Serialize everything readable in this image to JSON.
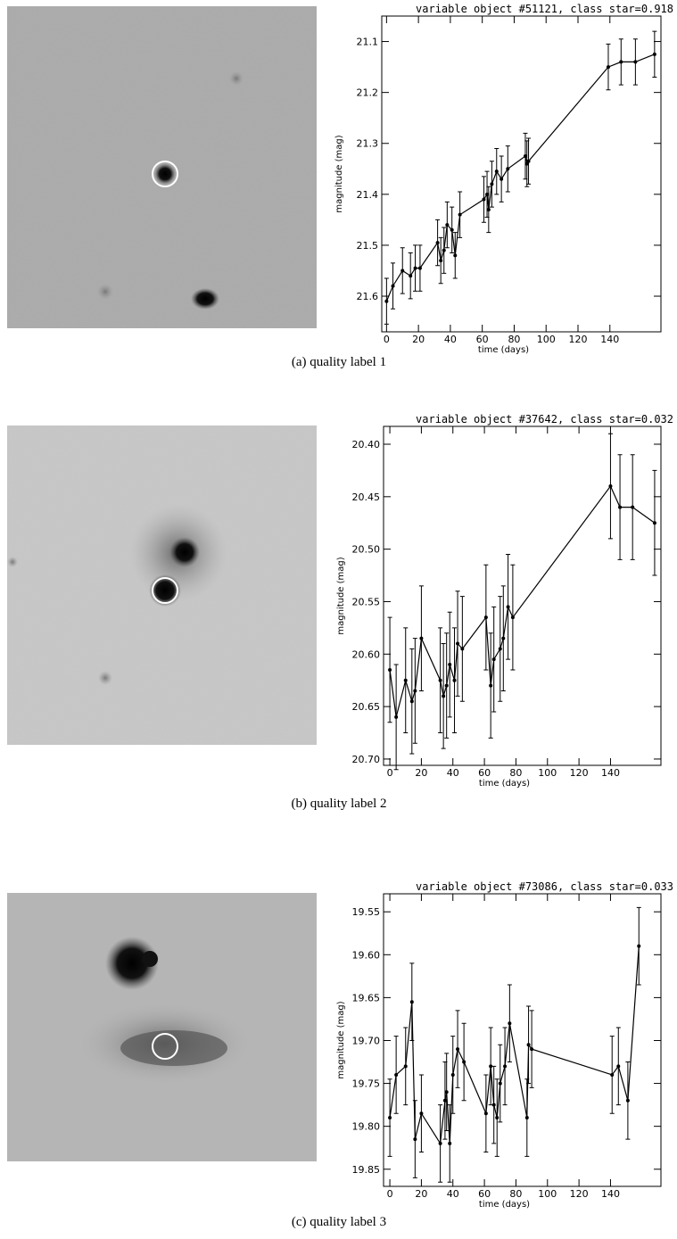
{
  "chart_data": [
    {
      "type": "line",
      "title": "variable object #51121, class star=0.918",
      "xlabel": "time (days)",
      "ylabel": "magnitude (mag)",
      "caption": "(a) quality label 1",
      "x": [
        0,
        4,
        10,
        15,
        18,
        21,
        32,
        34,
        36,
        38,
        41,
        43,
        46,
        61,
        63,
        64,
        66,
        69,
        72,
        76,
        87,
        88,
        89,
        139,
        147,
        156,
        168
      ],
      "values": [
        21.61,
        21.58,
        21.55,
        21.56,
        21.545,
        21.545,
        21.495,
        21.53,
        21.51,
        21.46,
        21.47,
        21.52,
        21.44,
        21.41,
        21.4,
        21.43,
        21.38,
        21.355,
        21.37,
        21.35,
        21.325,
        21.34,
        21.335,
        21.15,
        21.14,
        21.14,
        21.125
      ],
      "errors": [
        0.045,
        0.045,
        0.045,
        0.045,
        0.045,
        0.045,
        0.045,
        0.045,
        0.045,
        0.045,
        0.045,
        0.045,
        0.045,
        0.045,
        0.045,
        0.045,
        0.045,
        0.045,
        0.045,
        0.045,
        0.045,
        0.045,
        0.045,
        0.045,
        0.045,
        0.045,
        0.045
      ],
      "color": "#000000",
      "xlim": [
        -3,
        172
      ],
      "ylim": [
        21.05,
        21.67
      ],
      "y_inverted": true,
      "xticks": [
        0,
        20,
        40,
        60,
        80,
        100,
        120,
        140
      ],
      "yticks": [
        21.1,
        21.2,
        21.3,
        21.4,
        21.5,
        21.6
      ]
    },
    {
      "type": "line",
      "title": "variable object #37642, class star=0.032",
      "xlabel": "time (days)",
      "ylabel": "magnitude (mag)",
      "caption": "(b) quality label 2",
      "x": [
        0,
        4,
        10,
        14,
        16,
        20,
        32,
        34,
        36,
        38,
        41,
        43,
        46,
        61,
        64,
        66,
        70,
        72,
        75,
        78,
        140,
        146,
        154,
        168
      ],
      "values": [
        20.615,
        20.66,
        20.625,
        20.645,
        20.635,
        20.585,
        20.625,
        20.64,
        20.63,
        20.61,
        20.625,
        20.59,
        20.595,
        20.565,
        20.63,
        20.605,
        20.595,
        20.585,
        20.555,
        20.565,
        20.44,
        20.46,
        20.46,
        20.475
      ],
      "errors": [
        0.05,
        0.05,
        0.05,
        0.05,
        0.05,
        0.05,
        0.05,
        0.05,
        0.05,
        0.05,
        0.05,
        0.05,
        0.05,
        0.05,
        0.05,
        0.05,
        0.05,
        0.05,
        0.05,
        0.05,
        0.05,
        0.05,
        0.05,
        0.05
      ],
      "color": "#000000",
      "xlim": [
        -4,
        172
      ],
      "ylim": [
        20.383,
        20.706
      ],
      "y_inverted": true,
      "xticks": [
        0,
        20,
        40,
        60,
        80,
        100,
        120,
        140
      ],
      "yticks": [
        {
          "value": 20.4,
          "label": "20.40"
        },
        {
          "value": 20.45,
          "label": "20.45"
        },
        {
          "value": 20.5,
          "label": "20.50"
        },
        {
          "value": 20.55,
          "label": "20.55"
        },
        {
          "value": 20.6,
          "label": "20.60"
        },
        {
          "value": 20.65,
          "label": "20.65"
        },
        {
          "value": 20.7,
          "label": "20.70"
        }
      ]
    },
    {
      "type": "line",
      "title": "variable object #73086, class star=0.033",
      "xlabel": "time (days)",
      "ylabel": "magnitude (mag)",
      "caption": "(c) quality label 3",
      "x": [
        0,
        4,
        10,
        14,
        16,
        20,
        32,
        35,
        36,
        38,
        40,
        43,
        47,
        61,
        64,
        66,
        68,
        70,
        73,
        76,
        87,
        88,
        90,
        141,
        145,
        151,
        158
      ],
      "values": [
        19.79,
        19.74,
        19.73,
        19.655,
        19.815,
        19.785,
        19.82,
        19.77,
        19.76,
        19.82,
        19.74,
        19.71,
        19.725,
        19.785,
        19.73,
        19.775,
        19.79,
        19.75,
        19.73,
        19.68,
        19.79,
        19.705,
        19.71,
        19.74,
        19.73,
        19.77,
        19.59
      ],
      "errors": [
        0.045,
        0.045,
        0.045,
        0.045,
        0.045,
        0.045,
        0.045,
        0.045,
        0.045,
        0.045,
        0.045,
        0.045,
        0.045,
        0.045,
        0.045,
        0.045,
        0.045,
        0.045,
        0.045,
        0.045,
        0.045,
        0.045,
        0.045,
        0.045,
        0.045,
        0.045,
        0.045
      ],
      "color": "#000000",
      "xlim": [
        -4,
        172
      ],
      "ylim": [
        19.529,
        19.87
      ],
      "y_inverted": true,
      "xticks": [
        0,
        20,
        40,
        60,
        80,
        100,
        120,
        140
      ],
      "yticks": [
        {
          "value": 19.55,
          "label": "19.55"
        },
        {
          "value": 19.6,
          "label": "19.60"
        },
        {
          "value": 19.65,
          "label": "19.65"
        },
        {
          "value": 19.7,
          "label": "19.70"
        },
        {
          "value": 19.75,
          "label": "19.75"
        },
        {
          "value": 19.8,
          "label": "19.80"
        },
        {
          "value": 19.85,
          "label": "19.85"
        }
      ]
    }
  ]
}
